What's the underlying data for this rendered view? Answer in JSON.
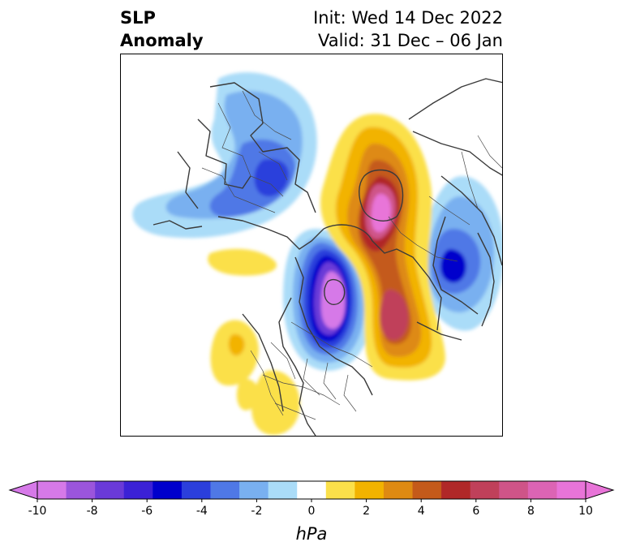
{
  "title": {
    "left_line1": "SLP",
    "left_line2": "Anomaly",
    "right_line1": "Init: Wed 14 Dec 2022",
    "right_line2": "Valid: 31 Dec – 06 Jan"
  },
  "colorbar": {
    "units": "hPa",
    "tick_labels": [
      "-10",
      "-8",
      "-6",
      "-4",
      "-2",
      "0",
      "2",
      "4",
      "6",
      "8",
      "10"
    ],
    "min": -10,
    "max": 10,
    "step": 1.25,
    "extend": "both",
    "colors": [
      "#d679e8",
      "#9b55dc",
      "#6a3ad8",
      "#3b21d6",
      "#0000cc",
      "#2b3fdc",
      "#4f78e6",
      "#79b0f0",
      "#aadcf8",
      "#ffffff",
      "#fbe04a",
      "#f2b300",
      "#de8a12",
      "#c45a1a",
      "#b02828",
      "#c0405a",
      "#cf5488",
      "#dc64b4",
      "#e874d8"
    ],
    "under_color": "#d679e8",
    "over_color": "#e874d8"
  },
  "map": {
    "projection": "north-polar-stereographic",
    "field": "sea-level-pressure-anomaly",
    "features": [
      "coastlines",
      "country-borders",
      "us-state-borders",
      "canada-province-borders"
    ]
  }
}
